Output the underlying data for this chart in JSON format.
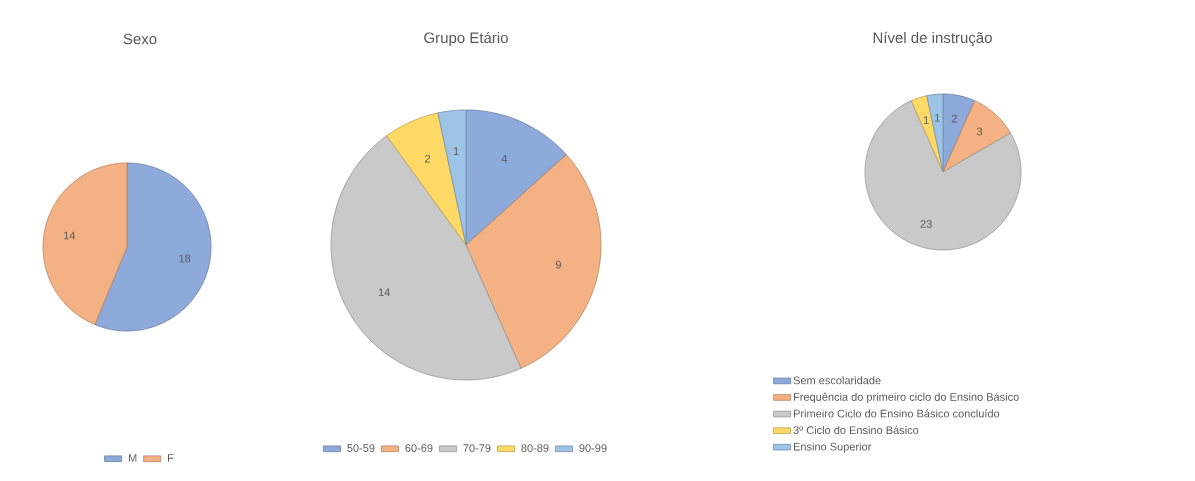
{
  "chart_data": [
    {
      "type": "pie",
      "title": "Sexo",
      "categories": [
        "M",
        "F"
      ],
      "values": [
        18,
        14
      ],
      "colors": [
        "#8eaadb",
        "#f4b183"
      ],
      "data_labels": true,
      "legend": "bottom"
    },
    {
      "type": "pie",
      "title": "Grupo Etário",
      "categories": [
        "50-59",
        "60-69",
        "70-79",
        "80-89",
        "90-99"
      ],
      "values": [
        4,
        9,
        14,
        2,
        1
      ],
      "colors": [
        "#8eaadb",
        "#f4b183",
        "#c9c9c9",
        "#ffd966",
        "#9dc3e6"
      ],
      "data_labels": true,
      "legend": "bottom"
    },
    {
      "type": "pie",
      "title": "Nível de instrução",
      "categories": [
        "Sem escolaridade",
        "Frequência do primeiro ciclo do Ensino Básico",
        "Primeiro Ciclo do Ensino Básico concluído",
        "3º Ciclo do Ensino Básico",
        "Ensino Superior"
      ],
      "values": [
        2,
        3,
        23,
        1,
        1
      ],
      "colors": [
        "#8eaadb",
        "#f4b183",
        "#c9c9c9",
        "#ffd966",
        "#9dc3e6"
      ],
      "data_labels": true,
      "legend": "bottom"
    }
  ]
}
